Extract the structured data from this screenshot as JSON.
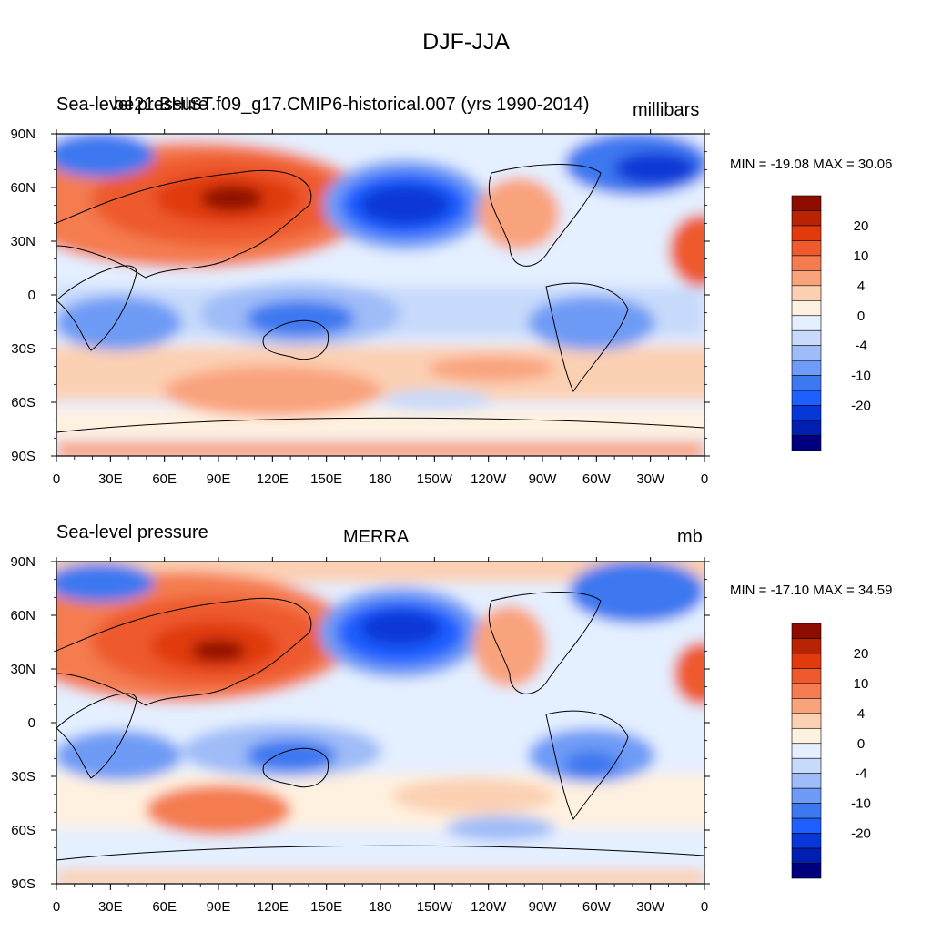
{
  "title": "DJF-JJA",
  "colors": {
    "levels": [
      "#00007f",
      "#001fb0",
      "#0737d6",
      "#1f5fff",
      "#3c78f0",
      "#6e9bf5",
      "#9fbcf8",
      "#c7dafb",
      "#e4efff",
      "#fff1e0",
      "#fcd0b3",
      "#f9a37d",
      "#f47c50",
      "#ee5a2d",
      "#e13a0d",
      "#b82305",
      "#8e0b00"
    ],
    "land_outline": "#000000"
  },
  "colorbar": {
    "labels": [
      "20",
      "10",
      "4",
      "0",
      "-4",
      "-10",
      "-20"
    ]
  },
  "axes": {
    "x_ticks": [
      "0",
      "30E",
      "60E",
      "90E",
      "120E",
      "150E",
      "180",
      "150W",
      "120W",
      "90W",
      "60W",
      "30W",
      "0"
    ],
    "y_ticks": [
      "90N",
      "60N",
      "30N",
      "0",
      "30S",
      "60S",
      "90S"
    ]
  },
  "panels": [
    {
      "left_title": "Sea-level pressure",
      "center_title": "be21.BHIST.f09_g17.CMIP6-historical.007 (yrs 1990-2014)",
      "units": "millibars",
      "stats": "MIN = -19.08 MAX =  30.06"
    },
    {
      "left_title": "Sea-level pressure",
      "center_title": "MERRA",
      "units": "mb",
      "stats": "MIN = -17.10 MAX =  34.59"
    }
  ]
}
